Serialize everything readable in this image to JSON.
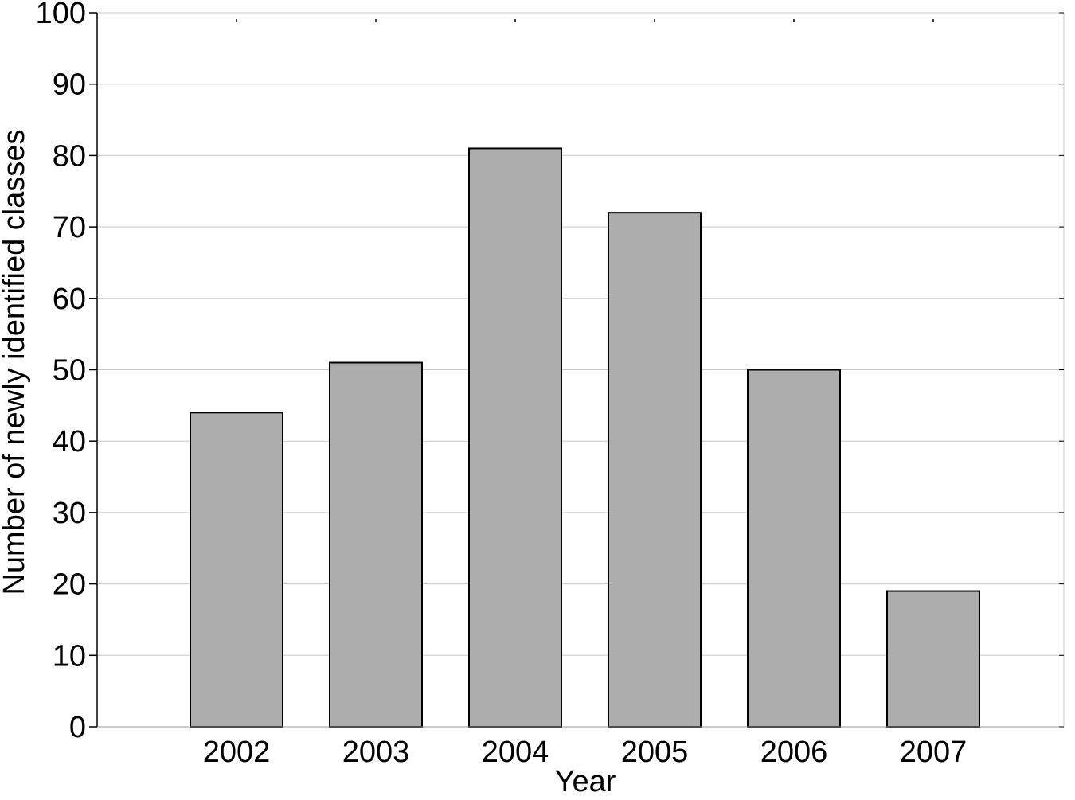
{
  "chart_data": {
    "type": "bar",
    "title": "",
    "xlabel": "Year",
    "ylabel": "Number of newly identified classes",
    "categories": [
      "2002",
      "2003",
      "2004",
      "2005",
      "2006",
      "2007"
    ],
    "values": [
      44,
      51,
      81,
      72,
      50,
      19
    ],
    "ylim": [
      0,
      100
    ],
    "yticks": [
      0,
      10,
      20,
      30,
      40,
      50,
      60,
      70,
      80,
      90,
      100
    ],
    "grid": true,
    "legend": "none",
    "bar_color": "#adadad",
    "bar_edge_color": "#000000",
    "grid_color": "#c8c8c8"
  }
}
